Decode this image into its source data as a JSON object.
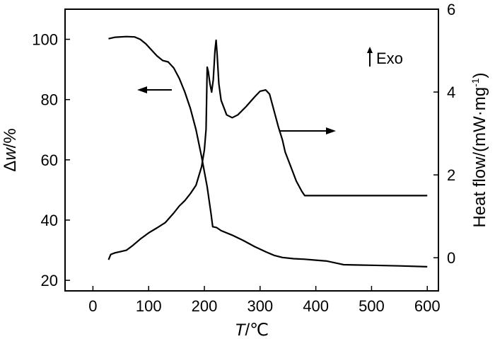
{
  "chart_data": {
    "type": "line",
    "xlabel_italic": "T",
    "xlabel_unit": "/℃",
    "ylabel_left_delta": "Δ",
    "ylabel_left_italic": "w",
    "ylabel_left_unit": "/%",
    "ylabel_right_pre": "Heat flow/(mW·mg",
    "ylabel_right_sup": "-1",
    "ylabel_right_post": ")",
    "xlim": [
      -50,
      620
    ],
    "ylim_left": [
      16.5,
      110
    ],
    "ylim_right": [
      -0.8,
      6
    ],
    "xticks": [
      0,
      100,
      200,
      300,
      400,
      500,
      600
    ],
    "yticks_left": [
      20,
      40,
      60,
      80,
      100
    ],
    "yticks_right": [
      0,
      2,
      4,
      6
    ],
    "annotation": "Exo",
    "series": [
      {
        "axis": "left",
        "points": [
          [
            28,
            100.2
          ],
          [
            40,
            100.7
          ],
          [
            60,
            100.9
          ],
          [
            75,
            100.8
          ],
          [
            85,
            100
          ],
          [
            95,
            98.5
          ],
          [
            105,
            96.5
          ],
          [
            115,
            94.5
          ],
          [
            125,
            93
          ],
          [
            135,
            92.5
          ],
          [
            145,
            90.5
          ],
          [
            155,
            87
          ],
          [
            165,
            82.5
          ],
          [
            175,
            77
          ],
          [
            185,
            70
          ],
          [
            195,
            61
          ],
          [
            205,
            51
          ],
          [
            212,
            42
          ],
          [
            215,
            37.8
          ],
          [
            222,
            37.5
          ],
          [
            230,
            36.5
          ],
          [
            250,
            35
          ],
          [
            270,
            33.2
          ],
          [
            290,
            31.2
          ],
          [
            310,
            29.5
          ],
          [
            325,
            28.3
          ],
          [
            340,
            27.6
          ],
          [
            360,
            27.2
          ],
          [
            380,
            27
          ],
          [
            400,
            26.7
          ],
          [
            420,
            26.4
          ],
          [
            440,
            25.6
          ],
          [
            450,
            25.2
          ],
          [
            470,
            25.1
          ],
          [
            500,
            25
          ],
          [
            550,
            24.8
          ],
          [
            600,
            24.5
          ]
        ]
      },
      {
        "axis": "right",
        "points": [
          [
            28,
            -0.05
          ],
          [
            32,
            0.08
          ],
          [
            40,
            0.12
          ],
          [
            50,
            0.15
          ],
          [
            60,
            0.18
          ],
          [
            70,
            0.28
          ],
          [
            85,
            0.45
          ],
          [
            100,
            0.6
          ],
          [
            115,
            0.72
          ],
          [
            130,
            0.85
          ],
          [
            145,
            1.08
          ],
          [
            155,
            1.25
          ],
          [
            165,
            1.38
          ],
          [
            175,
            1.55
          ],
          [
            185,
            1.75
          ],
          [
            195,
            2.2
          ],
          [
            200,
            2.6
          ],
          [
            203,
            3.1
          ],
          [
            205,
            4.6
          ],
          [
            207,
            4.5
          ],
          [
            210,
            4.2
          ],
          [
            213,
            4.0
          ],
          [
            216,
            4.3
          ],
          [
            219,
            5.0
          ],
          [
            221,
            5.25
          ],
          [
            223,
            4.9
          ],
          [
            226,
            4.2
          ],
          [
            230,
            3.8
          ],
          [
            240,
            3.45
          ],
          [
            250,
            3.38
          ],
          [
            260,
            3.45
          ],
          [
            275,
            3.65
          ],
          [
            290,
            3.88
          ],
          [
            300,
            4.02
          ],
          [
            310,
            4.05
          ],
          [
            317,
            3.95
          ],
          [
            325,
            3.55
          ],
          [
            333,
            3.15
          ],
          [
            340,
            2.85
          ],
          [
            345,
            2.55
          ],
          [
            355,
            2.2
          ],
          [
            365,
            1.85
          ],
          [
            375,
            1.6
          ],
          [
            380,
            1.5
          ],
          [
            400,
            1.5
          ],
          [
            450,
            1.5
          ],
          [
            500,
            1.5
          ],
          [
            550,
            1.5
          ],
          [
            600,
            1.5
          ]
        ]
      }
    ]
  }
}
